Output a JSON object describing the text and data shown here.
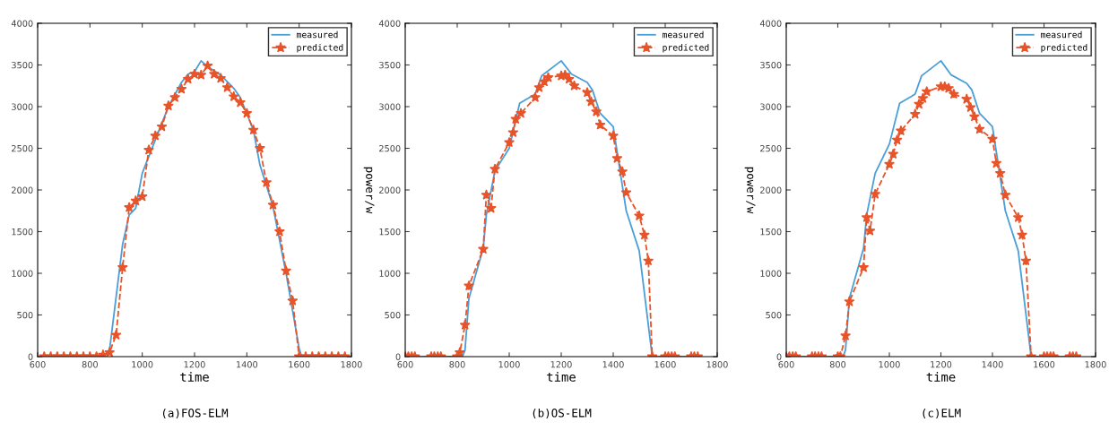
{
  "chart_data": [
    {
      "type": "line",
      "xlabel": "time",
      "annotations": [
        "(a)FOS-ELM"
      ],
      "xlim": [
        600,
        1800
      ],
      "ylim": [
        0,
        4000
      ],
      "xticks": [
        600,
        800,
        1000,
        1200,
        1400,
        1600,
        1800
      ],
      "yticks": [
        0,
        500,
        1000,
        1500,
        2000,
        2500,
        3000,
        3500,
        4000
      ],
      "grid": false,
      "legend": "top right",
      "series": [
        {
          "name": "measured",
          "color": "#4a9fd8",
          "marker": "none",
          "line_style": "solid",
          "x": [
            600,
            850,
            875,
            925,
            950,
            975,
            1000,
            1050,
            1100,
            1150,
            1175,
            1200,
            1225,
            1250,
            1300,
            1350,
            1375,
            1425,
            1450,
            1500,
            1550,
            1600,
            1610,
            1775
          ],
          "values": [
            0,
            0,
            80,
            1350,
            1700,
            1780,
            2200,
            2600,
            3000,
            3290,
            3390,
            3420,
            3550,
            3480,
            3380,
            3220,
            3110,
            2720,
            2300,
            1800,
            1000,
            100,
            0,
            0
          ]
        },
        {
          "name": "predicted",
          "color": "#e8542a",
          "marker": "star",
          "line_style": "dashed",
          "x": [
            625,
            650,
            675,
            700,
            725,
            750,
            775,
            800,
            825,
            850,
            875,
            900,
            925,
            950,
            975,
            1000,
            1025,
            1050,
            1075,
            1100,
            1125,
            1150,
            1175,
            1200,
            1225,
            1250,
            1275,
            1300,
            1325,
            1350,
            1375,
            1400,
            1425,
            1450,
            1475,
            1500,
            1525,
            1550,
            1575,
            1600,
            1625,
            1650,
            1675,
            1700,
            1725,
            1750,
            1775
          ],
          "values": [
            0,
            0,
            0,
            0,
            0,
            0,
            0,
            0,
            0,
            20,
            50,
            260,
            1070,
            1790,
            1870,
            1920,
            2480,
            2650,
            2760,
            3010,
            3110,
            3210,
            3330,
            3390,
            3380,
            3490,
            3390,
            3340,
            3230,
            3120,
            3050,
            2920,
            2720,
            2500,
            2090,
            1820,
            1500,
            1030,
            670,
            0,
            0,
            0,
            0,
            0,
            0,
            0,
            0
          ]
        }
      ]
    },
    {
      "type": "line",
      "xlabel": "time",
      "ylabel": "power/w",
      "annotations": [
        "(b)OS-ELM"
      ],
      "xlim": [
        600,
        1800
      ],
      "ylim": [
        0,
        4000
      ],
      "xticks": [
        600,
        800,
        1000,
        1200,
        1400,
        1600,
        1800
      ],
      "yticks": [
        0,
        500,
        1000,
        1500,
        2000,
        2500,
        3000,
        3500,
        4000
      ],
      "grid": false,
      "legend": "top right",
      "series": [
        {
          "name": "measured",
          "color": "#4a9fd8",
          "marker": "none",
          "line_style": "solid",
          "x": [
            600,
            820,
            830,
            845,
            900,
            912,
            945,
            1000,
            1040,
            1100,
            1125,
            1200,
            1240,
            1300,
            1320,
            1350,
            1400,
            1450,
            1500,
            1550,
            1740
          ],
          "values": [
            0,
            0,
            80,
            700,
            1300,
            1700,
            2230,
            2500,
            3040,
            3150,
            3370,
            3550,
            3390,
            3290,
            3200,
            2920,
            2760,
            1750,
            1270,
            0,
            0
          ]
        },
        {
          "name": "predicted",
          "color": "#e8542a",
          "marker": "star",
          "line_style": "dashed",
          "x": [
            600,
            612,
            625,
            637,
            700,
            712,
            725,
            737,
            800,
            810,
            830,
            845,
            900,
            912,
            930,
            945,
            1000,
            1015,
            1025,
            1045,
            1100,
            1115,
            1135,
            1150,
            1200,
            1215,
            1230,
            1250,
            1300,
            1315,
            1335,
            1350,
            1400,
            1415,
            1435,
            1450,
            1500,
            1520,
            1535,
            1550,
            1600,
            1612,
            1625,
            1637,
            1700,
            1712,
            1725
          ],
          "values": [
            0,
            0,
            0,
            0,
            0,
            0,
            0,
            0,
            0,
            50,
            380,
            850,
            1290,
            1940,
            1780,
            2250,
            2570,
            2690,
            2850,
            2920,
            3110,
            3230,
            3300,
            3350,
            3370,
            3380,
            3330,
            3250,
            3170,
            3060,
            2940,
            2780,
            2650,
            2380,
            2220,
            1970,
            1690,
            1460,
            1150,
            0,
            0,
            0,
            0,
            0,
            0,
            0,
            0
          ]
        }
      ]
    },
    {
      "type": "line",
      "xlabel": "time",
      "ylabel": "power/w",
      "annotations": [
        "(c)ELM"
      ],
      "xlim": [
        600,
        1800
      ],
      "ylim": [
        0,
        4000
      ],
      "xticks": [
        600,
        800,
        1000,
        1200,
        1400,
        1600,
        1800
      ],
      "yticks": [
        0,
        500,
        1000,
        1500,
        2000,
        2500,
        3000,
        3500,
        4000
      ],
      "grid": false,
      "legend": "top right",
      "series": [
        {
          "name": "measured",
          "color": "#4a9fd8",
          "marker": "none",
          "line_style": "solid",
          "x": [
            600,
            820,
            830,
            845,
            900,
            912,
            945,
            1000,
            1040,
            1100,
            1125,
            1200,
            1240,
            1300,
            1320,
            1350,
            1400,
            1450,
            1500,
            1550,
            1740
          ],
          "values": [
            0,
            0,
            80,
            700,
            1300,
            1700,
            2200,
            2550,
            3040,
            3150,
            3370,
            3550,
            3380,
            3280,
            3200,
            2920,
            2760,
            1750,
            1270,
            0,
            0
          ]
        },
        {
          "name": "predicted",
          "color": "#e8542a",
          "marker": "star",
          "line_style": "dashed",
          "x": [
            600,
            612,
            625,
            637,
            700,
            712,
            725,
            737,
            800,
            810,
            830,
            845,
            900,
            912,
            925,
            945,
            1000,
            1015,
            1030,
            1045,
            1100,
            1115,
            1130,
            1145,
            1200,
            1215,
            1230,
            1250,
            1300,
            1315,
            1330,
            1350,
            1400,
            1415,
            1430,
            1450,
            1500,
            1515,
            1530,
            1550,
            1600,
            1612,
            1625,
            1637,
            1700,
            1712,
            1725
          ],
          "values": [
            0,
            0,
            0,
            0,
            0,
            0,
            0,
            0,
            0,
            0,
            250,
            660,
            1070,
            1670,
            1510,
            1950,
            2310,
            2430,
            2600,
            2710,
            2910,
            3030,
            3100,
            3180,
            3240,
            3240,
            3220,
            3150,
            3090,
            2990,
            2880,
            2730,
            2610,
            2320,
            2200,
            1940,
            1670,
            1460,
            1150,
            0,
            0,
            0,
            0,
            0,
            0,
            0,
            0
          ]
        }
      ]
    }
  ]
}
